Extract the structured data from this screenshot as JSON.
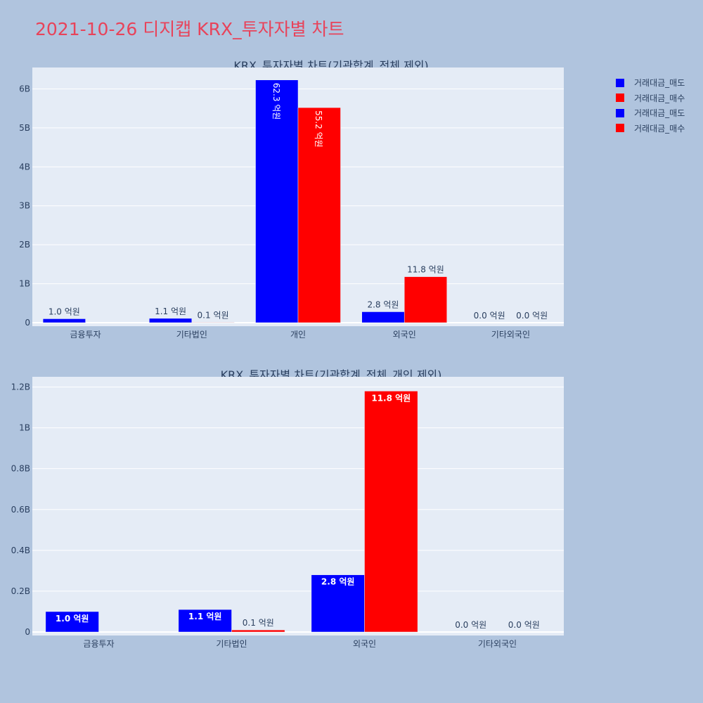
{
  "page": {
    "title": "2021-10-26 디지캡 KRX_투자자별 차트"
  },
  "legend": {
    "items": [
      {
        "label": "거래대금_매도",
        "color": "#0000ff"
      },
      {
        "label": "거래대금_매수",
        "color": "#ff0000"
      },
      {
        "label": "거래대금_매도",
        "color": "#0000ff"
      },
      {
        "label": "거래대금_매수",
        "color": "#ff0000"
      }
    ]
  },
  "chart_data": [
    {
      "type": "bar",
      "title": "KRX_투자자별 차트(기관합계_전체 제외)",
      "categories": [
        "금융투자",
        "기타법인",
        "개인",
        "외국인",
        "기타외국인"
      ],
      "series": [
        {
          "name": "거래대금_매도",
          "color": "#0000ff",
          "values": [
            100000000,
            110000000,
            6230000000,
            280000000,
            0
          ],
          "labels": [
            "1.0 억원",
            "1.1 억원",
            "62.3 억원",
            "2.8 억원",
            "0.0 억원"
          ]
        },
        {
          "name": "거래대금_매수",
          "color": "#ff0000",
          "values": [
            0,
            10000000,
            5520000000,
            1180000000,
            0
          ],
          "labels": [
            "",
            "0.1 억원",
            "55.2 억원",
            "11.8 억원",
            "0.0 억원"
          ]
        }
      ],
      "ylim": [
        0,
        6550000000
      ],
      "yticks": [
        0,
        1000000000,
        2000000000,
        3000000000,
        4000000000,
        5000000000,
        6000000000
      ],
      "ytick_labels": [
        "0",
        "1B",
        "2B",
        "3B",
        "4B",
        "5B",
        "6B"
      ],
      "grid": true,
      "legend": "top-right"
    },
    {
      "type": "bar",
      "title": "KRX_투자자별 차트(기관합계_전체_개인 제외)",
      "categories": [
        "금융투자",
        "기타법인",
        "외국인",
        "기타외국인"
      ],
      "series": [
        {
          "name": "거래대금_매도",
          "color": "#0000ff",
          "values": [
            100000000,
            110000000,
            280000000,
            0
          ],
          "labels": [
            "1.0 억원",
            "1.1 억원",
            "2.8 억원",
            "0.0 억원"
          ]
        },
        {
          "name": "거래대금_매수",
          "color": "#ff0000",
          "values": [
            0,
            10000000,
            1180000000,
            0
          ],
          "labels": [
            "",
            "0.1 억원",
            "11.8 억원",
            "0.0 억원"
          ]
        }
      ],
      "ylim": [
        0,
        1250000000
      ],
      "yticks": [
        0,
        200000000,
        400000000,
        600000000,
        800000000,
        1000000000,
        1200000000
      ],
      "ytick_labels": [
        "0",
        "0.2B",
        "0.4B",
        "0.6B",
        "0.8B",
        "1B",
        "1.2B"
      ],
      "grid": true,
      "legend": "top-right"
    }
  ]
}
